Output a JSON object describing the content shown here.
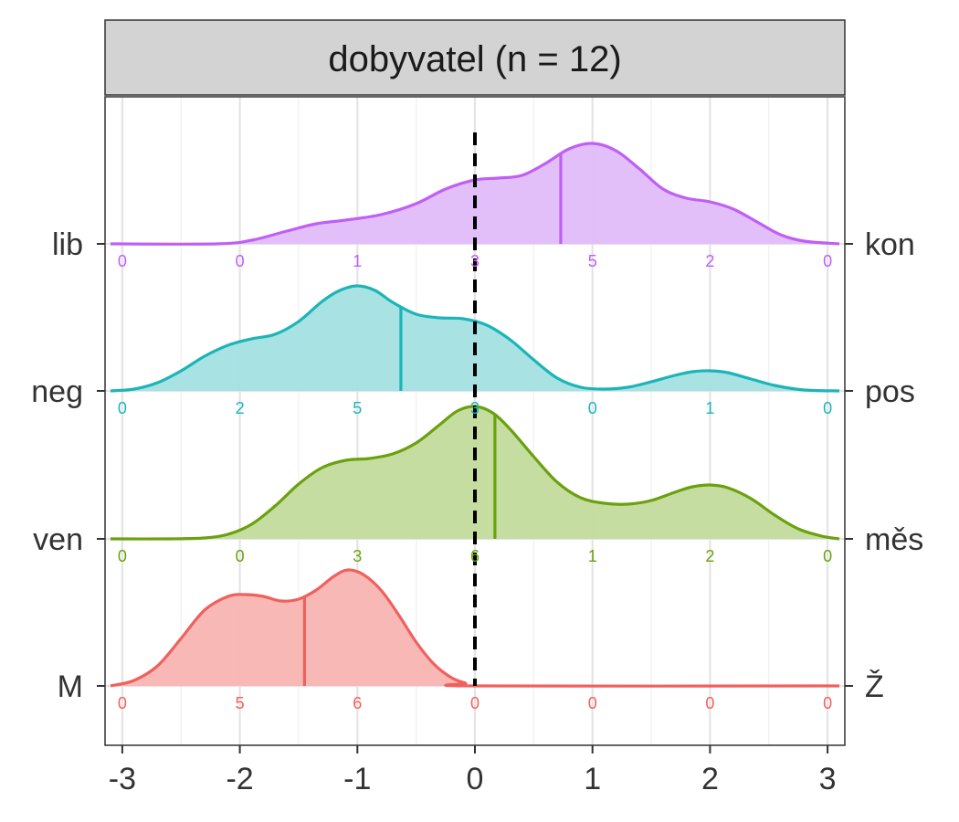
{
  "chart_data": {
    "type": "ridgeline",
    "title": "dobyvatel (n = 12)",
    "xlim": [
      -3,
      3
    ],
    "x_ticks": [
      "-3",
      "-2",
      "-1",
      "0",
      "1",
      "2",
      "3"
    ],
    "reference_line_x": 0,
    "grid": true,
    "count_positions": [
      -3,
      -2,
      -1,
      0,
      1,
      2,
      3
    ],
    "series": [
      {
        "left_label": "M",
        "right_label": "Ž",
        "color": "#F0605D",
        "fill": "#F8B5B2",
        "mean": -1.45,
        "counts": [
          "0",
          "5",
          "6",
          "0",
          "0",
          "0",
          "0"
        ],
        "density": [
          [
            -3.1,
            0.0
          ],
          [
            -2.9,
            0.06
          ],
          [
            -2.7,
            0.22
          ],
          [
            -2.5,
            0.52
          ],
          [
            -2.3,
            0.83
          ],
          [
            -2.1,
            0.98
          ],
          [
            -1.95,
            1.0
          ],
          [
            -1.8,
            0.98
          ],
          [
            -1.65,
            0.93
          ],
          [
            -1.5,
            0.95
          ],
          [
            -1.35,
            1.05
          ],
          [
            -1.2,
            1.2
          ],
          [
            -1.08,
            1.27
          ],
          [
            -0.95,
            1.22
          ],
          [
            -0.8,
            1.05
          ],
          [
            -0.65,
            0.78
          ],
          [
            -0.5,
            0.48
          ],
          [
            -0.35,
            0.24
          ],
          [
            -0.2,
            0.09
          ],
          [
            -0.08,
            0.03
          ],
          [
            0.0,
            0.0
          ],
          [
            3.1,
            0.0
          ]
        ]
      },
      {
        "left_label": "ven",
        "right_label": "měs",
        "color": "#6BA10E",
        "fill": "#C3DB9C",
        "mean": 0.17,
        "counts": [
          "0",
          "0",
          "3",
          "6",
          "1",
          "2",
          "0"
        ],
        "density": [
          [
            -3.1,
            0.0
          ],
          [
            -2.6,
            0.0
          ],
          [
            -2.3,
            0.01
          ],
          [
            -2.1,
            0.05
          ],
          [
            -1.9,
            0.16
          ],
          [
            -1.7,
            0.36
          ],
          [
            -1.5,
            0.6
          ],
          [
            -1.3,
            0.78
          ],
          [
            -1.1,
            0.86
          ],
          [
            -0.9,
            0.88
          ],
          [
            -0.7,
            0.93
          ],
          [
            -0.5,
            1.05
          ],
          [
            -0.3,
            1.25
          ],
          [
            -0.15,
            1.4
          ],
          [
            0.0,
            1.45
          ],
          [
            0.15,
            1.38
          ],
          [
            0.3,
            1.2
          ],
          [
            0.5,
            0.9
          ],
          [
            0.7,
            0.62
          ],
          [
            0.9,
            0.45
          ],
          [
            1.1,
            0.39
          ],
          [
            1.3,
            0.38
          ],
          [
            1.5,
            0.42
          ],
          [
            1.7,
            0.51
          ],
          [
            1.85,
            0.57
          ],
          [
            2.0,
            0.59
          ],
          [
            2.15,
            0.56
          ],
          [
            2.35,
            0.44
          ],
          [
            2.55,
            0.26
          ],
          [
            2.75,
            0.11
          ],
          [
            2.95,
            0.03
          ],
          [
            3.1,
            0.0
          ]
        ]
      },
      {
        "left_label": "neg",
        "right_label": "pos",
        "color": "#1BB5B8",
        "fill": "#A3E0E1",
        "mean": -0.63,
        "counts": [
          "0",
          "2",
          "5",
          "3",
          "0",
          "1",
          "0"
        ],
        "density": [
          [
            -3.1,
            0.0
          ],
          [
            -2.9,
            0.02
          ],
          [
            -2.7,
            0.09
          ],
          [
            -2.5,
            0.22
          ],
          [
            -2.3,
            0.38
          ],
          [
            -2.1,
            0.5
          ],
          [
            -1.9,
            0.57
          ],
          [
            -1.7,
            0.62
          ],
          [
            -1.5,
            0.76
          ],
          [
            -1.3,
            0.98
          ],
          [
            -1.15,
            1.1
          ],
          [
            -1.0,
            1.15
          ],
          [
            -0.85,
            1.1
          ],
          [
            -0.7,
            0.97
          ],
          [
            -0.5,
            0.84
          ],
          [
            -0.3,
            0.8
          ],
          [
            -0.1,
            0.79
          ],
          [
            0.1,
            0.72
          ],
          [
            0.3,
            0.56
          ],
          [
            0.5,
            0.34
          ],
          [
            0.7,
            0.14
          ],
          [
            0.9,
            0.04
          ],
          [
            1.1,
            0.02
          ],
          [
            1.3,
            0.04
          ],
          [
            1.5,
            0.1
          ],
          [
            1.7,
            0.17
          ],
          [
            1.85,
            0.21
          ],
          [
            2.0,
            0.22
          ],
          [
            2.15,
            0.2
          ],
          [
            2.35,
            0.13
          ],
          [
            2.55,
            0.06
          ],
          [
            2.8,
            0.01
          ],
          [
            3.1,
            0.0
          ]
        ]
      },
      {
        "left_label": "lib",
        "right_label": "kon",
        "color": "#C05FF5",
        "fill": "#E2BCFA",
        "mean": 0.73,
        "counts": [
          "0",
          "0",
          "1",
          "3",
          "5",
          "2",
          "0"
        ],
        "density": [
          [
            -3.1,
            0.0
          ],
          [
            -2.2,
            0.0
          ],
          [
            -1.9,
            0.04
          ],
          [
            -1.6,
            0.14
          ],
          [
            -1.35,
            0.22
          ],
          [
            -1.1,
            0.26
          ],
          [
            -0.8,
            0.32
          ],
          [
            -0.5,
            0.44
          ],
          [
            -0.25,
            0.6
          ],
          [
            0.0,
            0.7
          ],
          [
            0.2,
            0.72
          ],
          [
            0.4,
            0.75
          ],
          [
            0.6,
            0.88
          ],
          [
            0.8,
            1.04
          ],
          [
            1.0,
            1.1
          ],
          [
            1.2,
            1.02
          ],
          [
            1.4,
            0.82
          ],
          [
            1.6,
            0.6
          ],
          [
            1.8,
            0.5
          ],
          [
            2.0,
            0.46
          ],
          [
            2.2,
            0.38
          ],
          [
            2.4,
            0.24
          ],
          [
            2.6,
            0.1
          ],
          [
            2.8,
            0.03
          ],
          [
            3.1,
            0.0
          ]
        ]
      }
    ]
  }
}
